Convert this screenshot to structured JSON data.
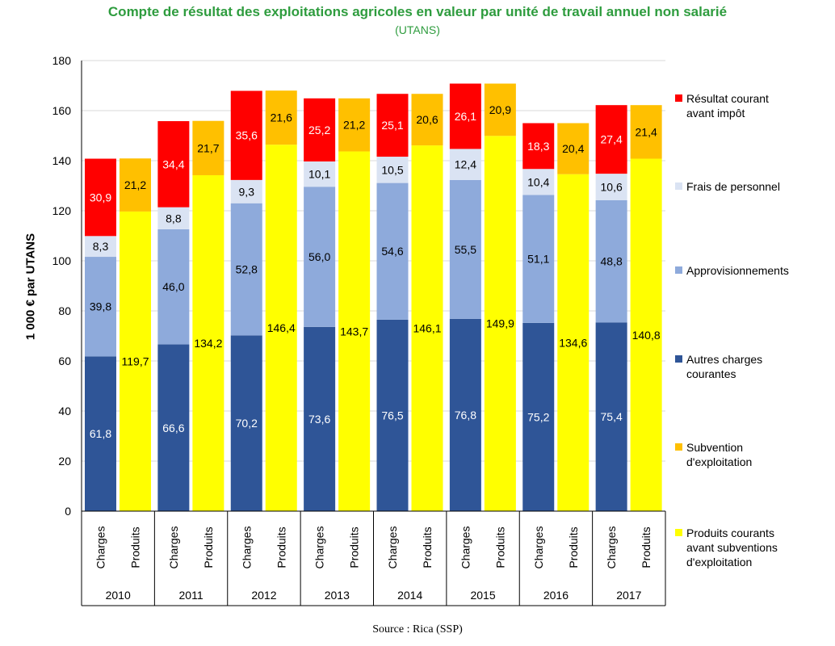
{
  "chart_data": {
    "type": "bar",
    "stacked": true,
    "title": "Compte de résultat des exploitations agricoles en valeur par unité de travail annuel non salarié",
    "subtitle": "(UTANS)",
    "ylabel": "1 000 € par UTANS",
    "ylim": [
      0,
      180
    ],
    "yticks": [
      "0",
      "20",
      "40",
      "60",
      "80",
      "100",
      "120",
      "140",
      "160",
      "180"
    ],
    "grid": true,
    "legend_position": "right",
    "years": [
      "2010",
      "2011",
      "2012",
      "2013",
      "2014",
      "2015",
      "2016",
      "2017"
    ],
    "bar_labels": [
      "Charges",
      "Produits"
    ],
    "charges_series": [
      {
        "name": "Autres charges courantes",
        "color": "#2f5597",
        "values": [
          61.8,
          66.6,
          70.2,
          73.6,
          76.5,
          76.8,
          75.2,
          75.4
        ],
        "labels": [
          "61,8",
          "66,6",
          "70,2",
          "73,6",
          "76,5",
          "76,8",
          "75,2",
          "75,4"
        ],
        "label_color": "#ffffff"
      },
      {
        "name": "Approvisionnements",
        "color": "#8eaadb",
        "values": [
          39.8,
          46.0,
          52.8,
          56.0,
          54.6,
          55.5,
          51.1,
          48.8
        ],
        "labels": [
          "39,8",
          "46,0",
          "52,8",
          "56,0",
          "54,6",
          "55,5",
          "51,1",
          "48,8"
        ],
        "label_color": "#000000"
      },
      {
        "name": "Frais de personnel",
        "color": "#dae3f3",
        "values": [
          8.3,
          8.8,
          9.3,
          10.1,
          10.5,
          12.4,
          10.4,
          10.6
        ],
        "labels": [
          "8,3",
          "8,8",
          "9,3",
          "10,1",
          "10,5",
          "12,4",
          "10,4",
          "10,6"
        ],
        "label_color": "#000000"
      },
      {
        "name": "Résultat courant avant impôt",
        "color": "#ff0000",
        "values": [
          30.9,
          34.4,
          35.6,
          25.2,
          25.1,
          26.1,
          18.3,
          27.4
        ],
        "labels": [
          "30,9",
          "34,4",
          "35,6",
          "25,2",
          "25,1",
          "26,1",
          "18,3",
          "27,4"
        ],
        "label_color": "#ffffff"
      }
    ],
    "produits_series": [
      {
        "name": "Produits courants avant subventions d'exploitation",
        "color": "#ffff00",
        "values": [
          119.7,
          134.2,
          146.4,
          143.7,
          146.1,
          149.9,
          134.6,
          140.8
        ],
        "labels": [
          "119,7",
          "134,2",
          "146,4",
          "143,7",
          "146,1",
          "149,9",
          "134,6",
          "140,8"
        ],
        "label_color": "#000000"
      },
      {
        "name": "Subvention d'exploitation",
        "color": "#ffc000",
        "values": [
          21.2,
          21.7,
          21.6,
          21.2,
          20.6,
          20.9,
          20.4,
          21.4
        ],
        "labels": [
          "21,2",
          "21,7",
          "21,6",
          "21,2",
          "20,6",
          "20,9",
          "20,4",
          "21,4"
        ],
        "label_color": "#000000"
      }
    ],
    "legend": [
      {
        "lines": [
          "Résultat courant",
          "avant impôt"
        ],
        "color": "#ff0000"
      },
      {
        "lines": [
          "Frais de personnel"
        ],
        "color": "#dae3f3"
      },
      {
        "lines": [
          "Approvisionnements"
        ],
        "color": "#8eaadb"
      },
      {
        "lines": [
          "Autres charges",
          "courantes"
        ],
        "color": "#2f5597"
      },
      {
        "lines": [
          "Subvention",
          "d'exploitation"
        ],
        "color": "#ffc000"
      },
      {
        "lines": [
          "Produits courants",
          "avant subventions",
          "d'exploitation"
        ],
        "color": "#ffff00"
      }
    ],
    "source": "Source : Rica (SSP)"
  }
}
